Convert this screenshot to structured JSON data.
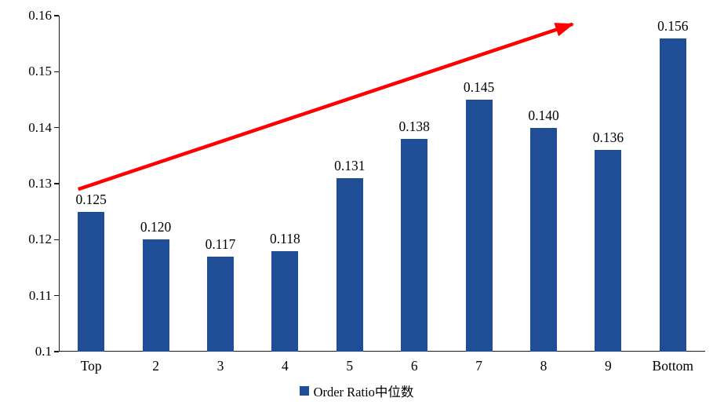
{
  "chart_data": {
    "type": "bar",
    "title": "",
    "xlabel": "",
    "ylabel": "",
    "categories": [
      "Top",
      "2",
      "3",
      "4",
      "5",
      "6",
      "7",
      "8",
      "9",
      "Bottom"
    ],
    "values": [
      0.125,
      0.12,
      0.117,
      0.118,
      0.131,
      0.138,
      0.145,
      0.14,
      0.136,
      0.156
    ],
    "value_labels": [
      "0.125",
      "0.120",
      "0.117",
      "0.118",
      "0.131",
      "0.138",
      "0.145",
      "0.140",
      "0.136",
      "0.156"
    ],
    "y_ticks": [
      0.1,
      0.11,
      0.12,
      0.13,
      0.14,
      0.15,
      0.16
    ],
    "y_tick_labels": [
      "0.1",
      "0.11",
      "0.12",
      "0.13",
      "0.14",
      "0.15",
      "0.16"
    ],
    "ylim": [
      0.1,
      0.16
    ],
    "grid": false,
    "legend": "Order Ratio中位数",
    "legend_position": "bottom",
    "bar_color": "#1F4E96",
    "axis_color": "#1a1a1a",
    "annotation": {
      "type": "arrow",
      "color": "#FF0000",
      "from": {
        "x_index": 0.3,
        "y": 0.129
      },
      "to": {
        "x_index": 7.95,
        "y": 0.1585
      }
    }
  }
}
